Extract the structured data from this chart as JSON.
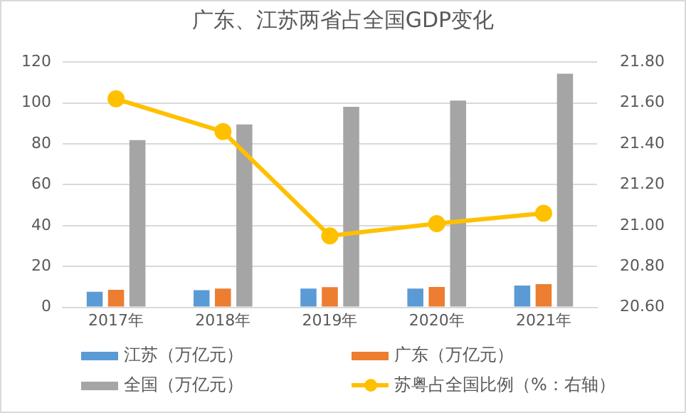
{
  "chart_data": {
    "type": "bar",
    "title": "广东、江苏两省占全国GDP变化",
    "categories": [
      "2017年",
      "2018年",
      "2019年",
      "2020年",
      "2021年"
    ],
    "series": [
      {
        "name": "江苏（万亿元）",
        "color": "#5b9bd5",
        "values": [
          7.6,
          8.4,
          9.2,
          9.2,
          10.7
        ]
      },
      {
        "name": "广东（万亿元）",
        "color": "#ed7d31",
        "values": [
          8.6,
          9.2,
          9.9,
          10.0,
          11.4
        ]
      },
      {
        "name": "全国（万亿元）",
        "color": "#a5a5a5",
        "values": [
          81.8,
          89.5,
          98.1,
          101.2,
          114.3
        ]
      },
      {
        "name": "苏粤占全国比例（%：右轴）",
        "type": "line",
        "axis": "y2",
        "color": "#ffc000",
        "values": [
          21.62,
          21.46,
          20.95,
          21.01,
          21.06
        ]
      }
    ],
    "ylim": [
      0,
      120
    ],
    "yticks": [
      0,
      20,
      40,
      60,
      80,
      100,
      120
    ],
    "y2lim": [
      20.6,
      21.8
    ],
    "y2ticks": [
      {
        "value": 20.6,
        "label": "20.60"
      },
      {
        "value": 20.8,
        "label": "20.80"
      },
      {
        "value": 21.0,
        "label": "21.00"
      },
      {
        "value": 21.2,
        "label": "21.20"
      },
      {
        "value": 21.4,
        "label": "21.40"
      },
      {
        "value": 21.6,
        "label": "21.60"
      },
      {
        "value": 21.8,
        "label": "21.80"
      }
    ],
    "grid": "y",
    "legend": "bottom",
    "marker": "circle",
    "line_style": "solid"
  }
}
